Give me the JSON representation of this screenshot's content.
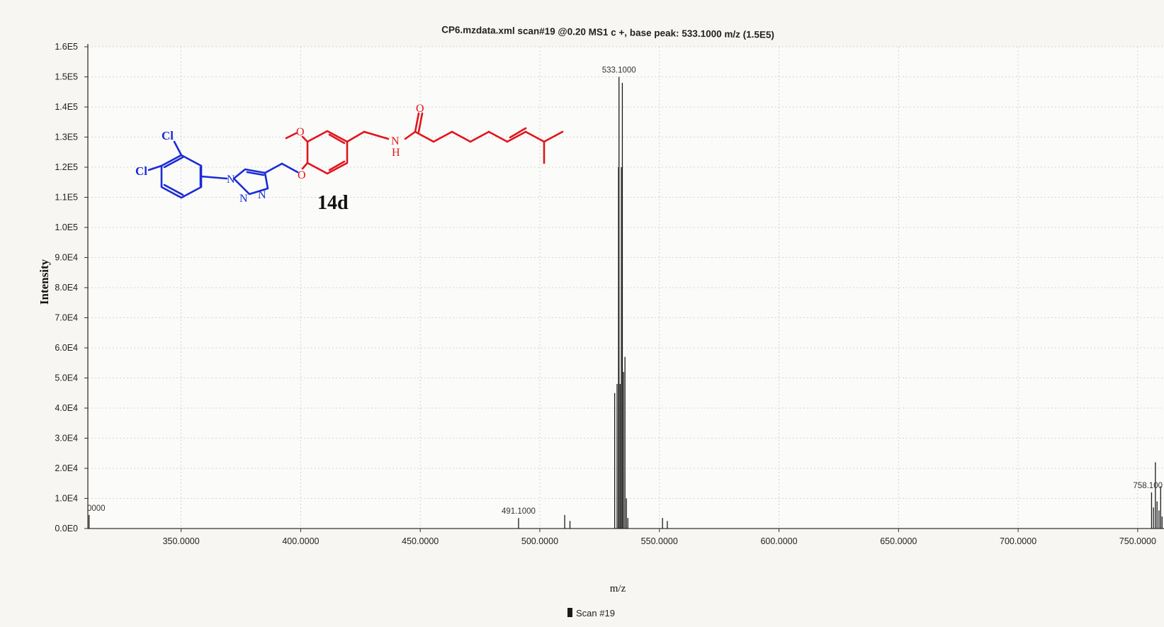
{
  "chart_data": {
    "type": "bar",
    "title": "CP6.mzdata.xml scan#19 @0.20 MS1 c +, base peak: 533.1000 m/z (1.5E5)",
    "xlabel": "m/z",
    "ylabel": "Intensity",
    "xlim": [
      311,
      761
    ],
    "ylim": [
      0,
      160000
    ],
    "x_ticks": [
      350,
      400,
      450,
      500,
      550,
      600,
      650,
      700,
      750
    ],
    "x_tick_labels": [
      "350.0000",
      "400.0000",
      "450.0000",
      "500.0000",
      "550.0000",
      "600.0000",
      "650.0000",
      "700.0000",
      "750.0000"
    ],
    "y_ticks": [
      0,
      10000,
      20000,
      30000,
      40000,
      50000,
      60000,
      70000,
      80000,
      90000,
      100000,
      110000,
      120000,
      130000,
      140000,
      150000,
      160000
    ],
    "y_tick_labels": [
      "0.0E0",
      "1.0E4",
      "2.0E4",
      "3.0E4",
      "4.0E4",
      "5.0E4",
      "6.0E4",
      "7.0E4",
      "8.0E4",
      "9.0E4",
      "1.0E5",
      "1.1E5",
      "1.2E5",
      "1.3E5",
      "1.4E5",
      "1.5E5",
      "1.6E5"
    ],
    "grid": true,
    "legend": {
      "position": "bottom-center",
      "entries": [
        "Scan #19"
      ]
    },
    "series": [
      {
        "name": "Scan #19",
        "color": "#1a1a1a",
        "points": [
          [
            311.5,
            4500
          ],
          [
            491.1,
            3500
          ],
          [
            510.4,
            4500
          ],
          [
            512.6,
            2500
          ],
          [
            531.3,
            45000
          ],
          [
            532.3,
            48000
          ],
          [
            532.9,
            120000
          ],
          [
            533.1,
            150000
          ],
          [
            533.6,
            48000
          ],
          [
            534.1,
            120000
          ],
          [
            534.5,
            148000
          ],
          [
            535.0,
            52000
          ],
          [
            535.6,
            57000
          ],
          [
            536.2,
            10000
          ],
          [
            536.8,
            3500
          ],
          [
            551.3,
            3500
          ],
          [
            553.3,
            2500
          ],
          [
            755.8,
            12000
          ],
          [
            756.6,
            7000
          ],
          [
            757.4,
            22000
          ],
          [
            758.1,
            9000
          ],
          [
            758.9,
            6000
          ],
          [
            759.6,
            14000
          ],
          [
            760.2,
            4000
          ]
        ]
      }
    ],
    "annotations": [
      {
        "x": 311.5,
        "y": 4500,
        "text": "0000"
      },
      {
        "x": 491.1,
        "y": 3500,
        "text": "491.1000"
      },
      {
        "x": 533.1,
        "y": 150000,
        "text": "533.1000"
      },
      {
        "x": 758.1,
        "y": 12000,
        "text": "758.100"
      }
    ]
  },
  "structure": {
    "compound_label": "14d",
    "atom_labels": {
      "cl_top": "Cl",
      "cl_left": "Cl",
      "n1": "N",
      "n2": "N",
      "n3": "N",
      "o_ether": "O",
      "o_methoxy": "O",
      "o_carbonyl": "O",
      "nh_n": "N",
      "nh_h": "H"
    },
    "colors": {
      "left_fragment": "#1a2bd6",
      "right_fragment": "#e0141c"
    }
  }
}
